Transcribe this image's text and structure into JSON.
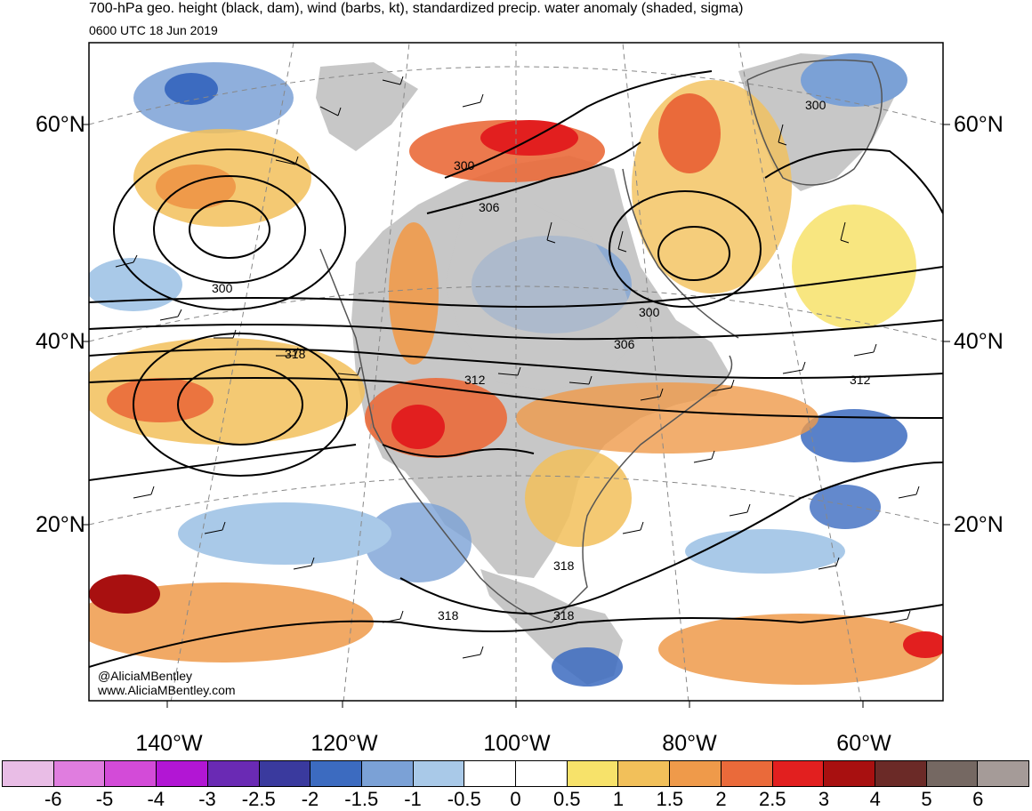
{
  "title": "700-hPa geo. height (black, dam), wind (barbs, kt), standardized precip. water anomaly (shaded, sigma)",
  "valid_time": "0600 UTC 18 Jun 2019",
  "credit": {
    "handle": "@AliciaMBentley",
    "website": "www.AliciaMBentley.com"
  },
  "lat_labels_left": [
    "60°N",
    "40°N",
    "20°N"
  ],
  "lat_labels_right": [
    "60°N",
    "40°N",
    "20°N"
  ],
  "lon_labels": [
    "140°W",
    "120°W",
    "100°W",
    "80°W",
    "60°W"
  ],
  "contour_labels": [
    "300",
    "300",
    "300",
    "306",
    "300",
    "306",
    "318",
    "312",
    "312",
    "318",
    "318",
    "318"
  ],
  "colorbar": {
    "labels": [
      "-6",
      "-5",
      "-4",
      "-3",
      "-2.5",
      "-2",
      "-1.5",
      "-1",
      "-0.5",
      "0",
      "0.5",
      "1",
      "1.5",
      "2",
      "2.5",
      "3",
      "4",
      "5",
      "6"
    ],
    "colors": [
      "#e9bde6",
      "#e07ddf",
      "#d34bd8",
      "#b216d4",
      "#6a2ab4",
      "#3a3a9e",
      "#3c6bc0",
      "#7ba1d6",
      "#a9c9e8",
      "#ffffff",
      "#ffffff",
      "#f7e26a",
      "#f2c05a",
      "#ef9a4a",
      "#ea6a3a",
      "#e21f1f",
      "#a81010",
      "#6b2a27",
      "#756862",
      "#a59b98"
    ]
  },
  "colors": {
    "land": "#c7c7c7",
    "coast": "#555555",
    "contour": "#000000"
  }
}
